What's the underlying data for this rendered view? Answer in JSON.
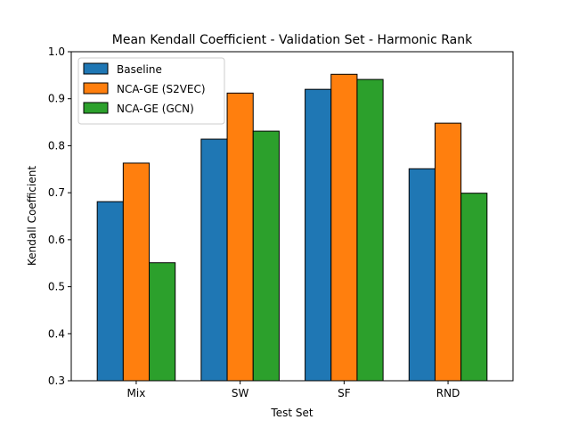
{
  "chart_data": {
    "type": "bar",
    "title": "Mean Kendall Coefficient - Validation Set - Harmonic Rank",
    "xlabel": "Test Set",
    "ylabel": "Kendall Coefficient",
    "ylim": [
      0.3,
      1.0
    ],
    "yticks": [
      "0.3",
      "0.4",
      "0.5",
      "0.6",
      "0.7",
      "0.8",
      "0.9",
      "1.0"
    ],
    "categories": [
      "Mix",
      "SW",
      "SF",
      "RND"
    ],
    "series": [
      {
        "name": "Baseline",
        "color": "#1f77b4",
        "values": [
          0.681,
          0.814,
          0.92,
          0.751
        ]
      },
      {
        "name": "NCA-GE (S2VEC)",
        "color": "#ff7f0e",
        "values": [
          0.763,
          0.912,
          0.952,
          0.848
        ]
      },
      {
        "name": "NCA-GE (GCN)",
        "color": "#2ca02c",
        "values": [
          0.551,
          0.831,
          0.941,
          0.699
        ]
      }
    ],
    "grid": false,
    "legend_position": "top-left"
  }
}
